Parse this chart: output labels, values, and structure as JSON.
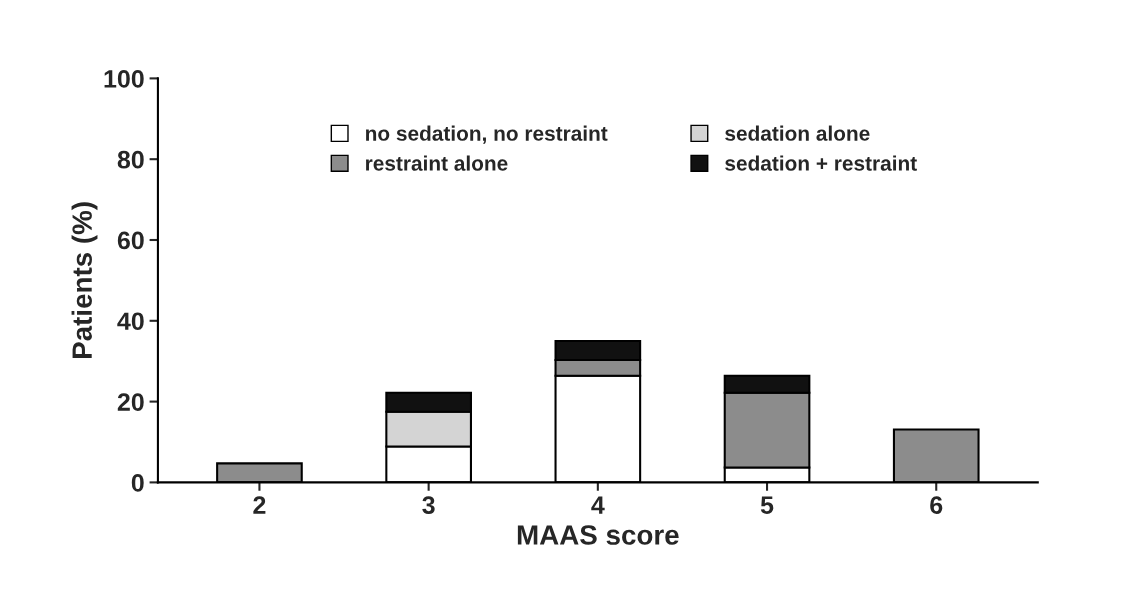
{
  "chart_data": {
    "type": "bar",
    "stacked": true,
    "xlabel": "MAAS score",
    "ylabel": "Patients (%)",
    "categories": [
      "2",
      "3",
      "4",
      "5",
      "6"
    ],
    "series": [
      {
        "name": "no sedation, no restraint",
        "color": "#ffffff",
        "values": [
          null,
          8.9,
          26.4,
          3.7,
          null
        ]
      },
      {
        "name": "sedation alone",
        "color": "#d4d4d4",
        "values": [
          null,
          8.6,
          null,
          null,
          null
        ]
      },
      {
        "name": "restraint alone",
        "color": "#8c8c8c",
        "values": [
          4.7,
          null,
          3.9,
          18.5,
          13.1
        ]
      },
      {
        "name": "sedation + restraint",
        "color": "#111111",
        "values": [
          null,
          4.7,
          4.7,
          4.2,
          null
        ]
      }
    ],
    "ylim": [
      0,
      100
    ],
    "yticks": [
      0,
      20,
      40,
      60,
      80,
      100
    ],
    "grid": false,
    "legend": "top"
  }
}
